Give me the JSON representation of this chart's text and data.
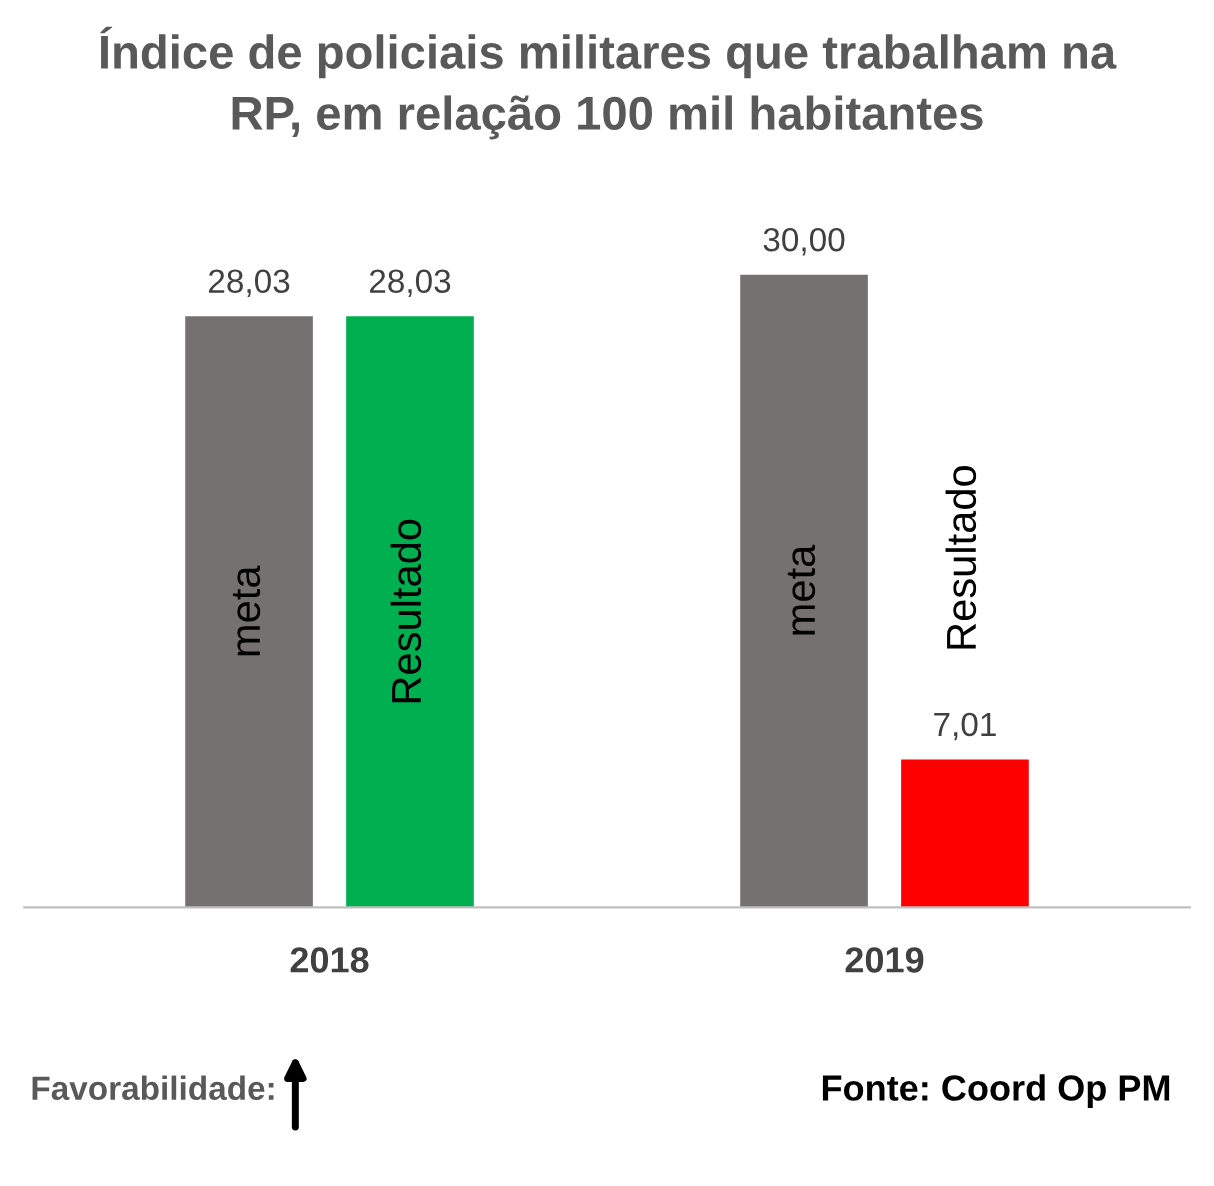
{
  "chart_data": {
    "type": "bar",
    "title": "Índice de policiais militares que trabalham na\nRP, em relação 100 mil habitantes",
    "categories": [
      "2018",
      "2019"
    ],
    "series": [
      {
        "name": "meta",
        "colors": [
          "#767171",
          "#767171"
        ],
        "values": [
          28.03,
          30.0
        ],
        "value_labels": [
          "28,03",
          "30,00"
        ]
      },
      {
        "name": "Resultado",
        "colors": [
          "#00b050",
          "#ff0000"
        ],
        "values": [
          28.03,
          7.01
        ],
        "value_labels": [
          "28,03",
          "7,01"
        ]
      }
    ],
    "annotations": [
      "Favorabilidade:",
      "Fonte: Coord Op PM"
    ],
    "grid": false,
    "legend": false
  }
}
